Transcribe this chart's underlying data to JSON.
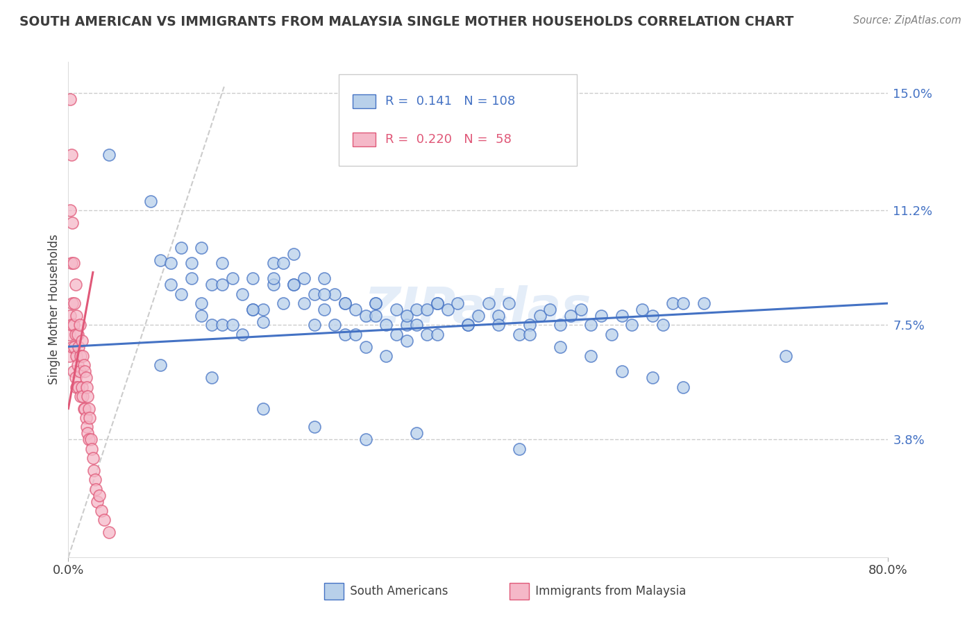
{
  "title": "SOUTH AMERICAN VS IMMIGRANTS FROM MALAYSIA SINGLE MOTHER HOUSEHOLDS CORRELATION CHART",
  "source": "Source: ZipAtlas.com",
  "ylabel": "Single Mother Households",
  "yticks": [
    0.038,
    0.075,
    0.112,
    0.15
  ],
  "ytick_labels": [
    "3.8%",
    "7.5%",
    "11.2%",
    "15.0%"
  ],
  "legend_blue_R": "0.141",
  "legend_blue_N": "108",
  "legend_pink_R": "0.220",
  "legend_pink_N": "58",
  "blue_color": "#b8d0ea",
  "pink_color": "#f5b8c8",
  "blue_line_color": "#4472c4",
  "pink_line_color": "#e05878",
  "blue_edge_color": "#4472c4",
  "pink_edge_color": "#e05878",
  "watermark": "ZIPatlas",
  "blue_scatter_x": [
    0.04,
    0.08,
    0.09,
    0.1,
    0.11,
    0.12,
    0.12,
    0.13,
    0.13,
    0.14,
    0.14,
    0.15,
    0.15,
    0.16,
    0.16,
    0.17,
    0.17,
    0.18,
    0.18,
    0.19,
    0.19,
    0.2,
    0.2,
    0.21,
    0.21,
    0.22,
    0.22,
    0.23,
    0.23,
    0.24,
    0.24,
    0.25,
    0.25,
    0.26,
    0.26,
    0.27,
    0.27,
    0.28,
    0.28,
    0.29,
    0.29,
    0.3,
    0.3,
    0.31,
    0.31,
    0.32,
    0.32,
    0.33,
    0.33,
    0.34,
    0.34,
    0.35,
    0.35,
    0.36,
    0.36,
    0.37,
    0.38,
    0.39,
    0.4,
    0.41,
    0.42,
    0.43,
    0.44,
    0.45,
    0.46,
    0.47,
    0.48,
    0.49,
    0.5,
    0.51,
    0.52,
    0.53,
    0.54,
    0.55,
    0.56,
    0.57,
    0.58,
    0.59,
    0.6,
    0.62,
    0.1,
    0.11,
    0.13,
    0.15,
    0.18,
    0.2,
    0.22,
    0.25,
    0.27,
    0.3,
    0.33,
    0.36,
    0.39,
    0.42,
    0.45,
    0.48,
    0.51,
    0.54,
    0.57,
    0.6,
    0.09,
    0.14,
    0.19,
    0.24,
    0.29,
    0.34,
    0.44,
    0.7
  ],
  "blue_scatter_y": [
    0.13,
    0.115,
    0.096,
    0.095,
    0.1,
    0.095,
    0.09,
    0.082,
    0.1,
    0.088,
    0.075,
    0.095,
    0.075,
    0.09,
    0.075,
    0.085,
    0.072,
    0.09,
    0.08,
    0.076,
    0.08,
    0.095,
    0.088,
    0.095,
    0.082,
    0.098,
    0.088,
    0.09,
    0.082,
    0.085,
    0.075,
    0.09,
    0.08,
    0.085,
    0.075,
    0.082,
    0.072,
    0.08,
    0.072,
    0.078,
    0.068,
    0.082,
    0.078,
    0.075,
    0.065,
    0.08,
    0.072,
    0.075,
    0.07,
    0.08,
    0.075,
    0.08,
    0.072,
    0.082,
    0.072,
    0.08,
    0.082,
    0.075,
    0.078,
    0.082,
    0.078,
    0.082,
    0.072,
    0.075,
    0.078,
    0.08,
    0.075,
    0.078,
    0.08,
    0.075,
    0.078,
    0.072,
    0.078,
    0.075,
    0.08,
    0.078,
    0.075,
    0.082,
    0.082,
    0.082,
    0.088,
    0.085,
    0.078,
    0.088,
    0.08,
    0.09,
    0.088,
    0.085,
    0.082,
    0.082,
    0.078,
    0.082,
    0.075,
    0.075,
    0.072,
    0.068,
    0.065,
    0.06,
    0.058,
    0.055,
    0.062,
    0.058,
    0.048,
    0.042,
    0.038,
    0.04,
    0.035,
    0.065
  ],
  "pink_scatter_x": [
    0.001,
    0.001,
    0.002,
    0.002,
    0.002,
    0.003,
    0.003,
    0.003,
    0.004,
    0.004,
    0.004,
    0.005,
    0.005,
    0.005,
    0.006,
    0.006,
    0.007,
    0.007,
    0.007,
    0.008,
    0.008,
    0.008,
    0.009,
    0.009,
    0.01,
    0.01,
    0.011,
    0.011,
    0.012,
    0.012,
    0.013,
    0.013,
    0.014,
    0.014,
    0.015,
    0.015,
    0.016,
    0.016,
    0.017,
    0.017,
    0.018,
    0.018,
    0.019,
    0.019,
    0.02,
    0.02,
    0.021,
    0.022,
    0.023,
    0.024,
    0.025,
    0.026,
    0.027,
    0.028,
    0.03,
    0.032,
    0.035,
    0.04
  ],
  "pink_scatter_y": [
    0.072,
    0.065,
    0.148,
    0.112,
    0.078,
    0.13,
    0.095,
    0.075,
    0.108,
    0.082,
    0.068,
    0.095,
    0.075,
    0.06,
    0.082,
    0.068,
    0.088,
    0.072,
    0.058,
    0.078,
    0.065,
    0.055,
    0.072,
    0.062,
    0.068,
    0.055,
    0.075,
    0.06,
    0.065,
    0.052,
    0.07,
    0.055,
    0.065,
    0.052,
    0.062,
    0.048,
    0.06,
    0.048,
    0.058,
    0.045,
    0.055,
    0.042,
    0.052,
    0.04,
    0.048,
    0.038,
    0.045,
    0.038,
    0.035,
    0.032,
    0.028,
    0.025,
    0.022,
    0.018,
    0.02,
    0.015,
    0.012,
    0.008
  ],
  "blue_line_x": [
    0.0,
    0.8
  ],
  "blue_line_y": [
    0.068,
    0.082
  ],
  "pink_line_x": [
    0.0,
    0.024
  ],
  "pink_line_y": [
    0.048,
    0.092
  ],
  "diag_line_x": [
    0.0,
    0.152
  ],
  "diag_line_y": [
    0.0,
    0.152
  ],
  "xlim": [
    0.0,
    0.8
  ],
  "ylim": [
    0.0,
    0.16
  ],
  "grid_color": "#cccccc",
  "background_color": "#ffffff",
  "title_color": "#3c3c3c",
  "source_color": "#808080"
}
